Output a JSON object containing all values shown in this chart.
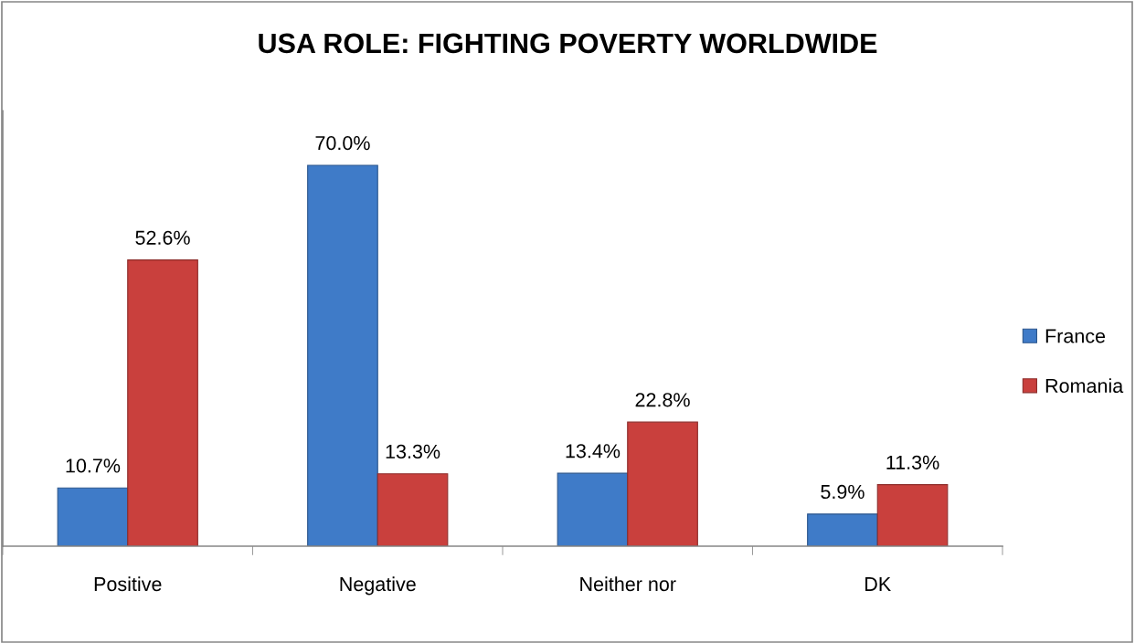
{
  "chart_data": {
    "type": "bar",
    "title": "USA ROLE: FIGHTING POVERTY WORLDWIDE",
    "categories": [
      "Positive",
      "Negative",
      "Neither nor",
      "DK"
    ],
    "series": [
      {
        "name": "France",
        "color": "#3f7bc8",
        "values": [
          10.7,
          70.0,
          13.4,
          5.9
        ],
        "value_labels": [
          "10.7%",
          "70.0%",
          "13.4%",
          "5.9%"
        ]
      },
      {
        "name": "Romania",
        "color": "#c9403d",
        "values": [
          52.6,
          13.3,
          22.8,
          11.3
        ],
        "value_labels": [
          "52.6%",
          "13.3%",
          "22.8%",
          "11.3%"
        ]
      }
    ],
    "ylim": [
      0,
      80
    ],
    "legend": "right",
    "tick_labels": "x"
  }
}
